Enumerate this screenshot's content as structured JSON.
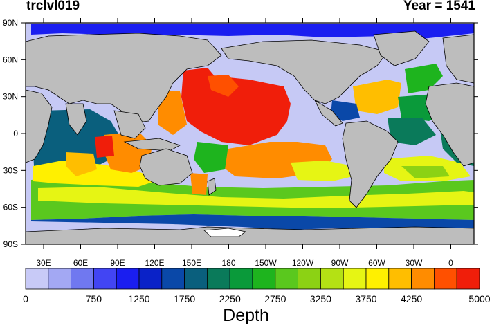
{
  "header": {
    "variable": "trclvl019",
    "year_label": "Year = 1541"
  },
  "map": {
    "lat_ticks": [
      "90N",
      "60N",
      "30N",
      "0",
      "30S",
      "60S",
      "90S"
    ],
    "lon_ticks": [
      "30E",
      "60E",
      "90E",
      "120E",
      "150E",
      "180",
      "150W",
      "120W",
      "90W",
      "60W",
      "30W",
      "0"
    ],
    "land_color": "#bdbdbd",
    "ocean_shallow_color": "#c6c9f5"
  },
  "colorbar": {
    "title": "Depth",
    "labels": [
      "0",
      "750",
      "1250",
      "1750",
      "2250",
      "2750",
      "3250",
      "3750",
      "4250",
      "5000"
    ],
    "colors": [
      "#c8caf7",
      "#a3a8f3",
      "#7078f0",
      "#4245f3",
      "#1a1ef0",
      "#0a22c8",
      "#0a48a8",
      "#0a5f7d",
      "#0a7a5a",
      "#0a9a3a",
      "#1eb41e",
      "#5ac81e",
      "#8cd214",
      "#b4e114",
      "#e6f514",
      "#fff000",
      "#ffbe00",
      "#ff8c00",
      "#ff5000",
      "#f01e0a"
    ]
  }
}
